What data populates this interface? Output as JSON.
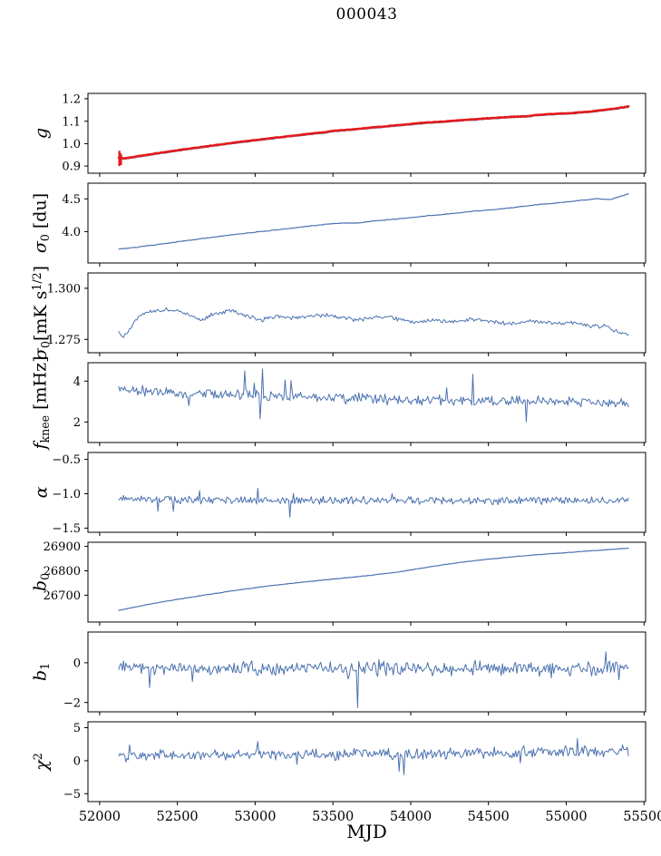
{
  "chart_data": {
    "type": "line",
    "title": "000043",
    "xlabel": "MJD",
    "x_axis": {
      "lim": [
        51925,
        55510
      ],
      "ticks": [
        52000,
        52500,
        53000,
        53500,
        54000,
        54500,
        55000,
        55500
      ],
      "tick_labels": [
        "52000",
        "52500",
        "53000",
        "53500",
        "54000",
        "54500",
        "55000",
        "55500"
      ]
    },
    "colors": {
      "data_line": "#4c72b0",
      "fit_line": "#e41a1c",
      "axis": "#000000"
    },
    "panels": [
      {
        "name": "g",
        "ylabel": [
          {
            "t": "g",
            "it": true
          }
        ],
        "ylim": [
          0.868,
          1.224
        ],
        "yticks": [
          0.9,
          1.0,
          1.1,
          1.2
        ],
        "ytick_labels": [
          "0.9",
          "1.0",
          "1.1",
          "1.2"
        ],
        "xrange": [
          52123,
          55400
        ],
        "series": [
          {
            "name": "gain-raw",
            "color": "#4c72b0",
            "width": 1.1,
            "n": 330,
            "seed": 3,
            "noise": 0.0016,
            "trend": [
              [
                52123,
                0.933
              ],
              [
                52160,
                0.93
              ],
              [
                52250,
                0.94
              ],
              [
                52400,
                0.956
              ],
              [
                52550,
                0.971
              ],
              [
                52700,
                0.985
              ],
              [
                52850,
                0.999
              ],
              [
                53000,
                1.012
              ],
              [
                53150,
                1.024
              ],
              [
                53300,
                1.036
              ],
              [
                53450,
                1.047
              ],
              [
                53500,
                1.053
              ],
              [
                53600,
                1.058
              ],
              [
                53750,
                1.068
              ],
              [
                53900,
                1.077
              ],
              [
                54100,
                1.09
              ],
              [
                54200,
                1.094
              ],
              [
                54350,
                1.102
              ],
              [
                54500,
                1.109
              ],
              [
                54650,
                1.116
              ],
              [
                54750,
                1.118
              ],
              [
                54800,
                1.123
              ],
              [
                54950,
                1.13
              ],
              [
                55000,
                1.131
              ],
              [
                55150,
                1.139
              ],
              [
                55250,
                1.147
              ],
              [
                55320,
                1.153
              ],
              [
                55400,
                1.162
              ]
            ]
          },
          {
            "name": "gain-fit",
            "color": "#e41a1c",
            "width": 2.6,
            "n": 330,
            "seed": 9,
            "noise": 0.0012,
            "yoffset": 0.004
          },
          {
            "name": "gain-errorbars",
            "color": "#e41a1c",
            "width": 2.4,
            "type": "vsegments",
            "segments": [
              [
                52127,
                0.9,
                0.968
              ],
              [
                52132,
                0.912,
                0.958
              ],
              [
                52137,
                0.905,
                0.952
              ]
            ]
          }
        ]
      },
      {
        "name": "sigma0-du",
        "ylabel": [
          {
            "t": "σ",
            "it": true
          },
          {
            "t": "0",
            "sub": true
          },
          {
            "t": " [du]"
          }
        ],
        "ylim": [
          3.52,
          4.74
        ],
        "yticks": [
          4.0,
          4.5
        ],
        "ytick_labels": [
          "4.0",
          "4.5"
        ],
        "xrange": [
          52123,
          55400
        ],
        "series": [
          {
            "name": "sigma0-du-line",
            "color": "#4c72b0",
            "width": 1.2,
            "n": 330,
            "seed": 17,
            "noise": 0.006,
            "trend": [
              [
                52123,
                3.73
              ],
              [
                52250,
                3.765
              ],
              [
                52400,
                3.81
              ],
              [
                52550,
                3.86
              ],
              [
                52700,
                3.905
              ],
              [
                52850,
                3.95
              ],
              [
                53000,
                3.99
              ],
              [
                53150,
                4.03
              ],
              [
                53300,
                4.07
              ],
              [
                53450,
                4.11
              ],
              [
                53550,
                4.13
              ],
              [
                53650,
                4.13
              ],
              [
                53800,
                4.17
              ],
              [
                53950,
                4.2
              ],
              [
                54100,
                4.24
              ],
              [
                54250,
                4.27
              ],
              [
                54400,
                4.31
              ],
              [
                54550,
                4.34
              ],
              [
                54700,
                4.38
              ],
              [
                54850,
                4.42
              ],
              [
                55000,
                4.45
              ],
              [
                55100,
                4.48
              ],
              [
                55200,
                4.5
              ],
              [
                55280,
                4.49
              ],
              [
                55340,
                4.53
              ],
              [
                55400,
                4.58
              ]
            ]
          }
        ]
      },
      {
        "name": "sigma0-mks",
        "ylabel": [
          {
            "t": "σ",
            "it": true
          },
          {
            "t": "0",
            "sub": true
          },
          {
            "t": "[mK s"
          },
          {
            "t": "1/2",
            "sup": true
          },
          {
            "t": "]"
          }
        ],
        "ylim": [
          1.2685,
          1.3075
        ],
        "yticks": [
          1.275,
          1.3
        ],
        "ytick_labels": [
          "1.275",
          "1.300"
        ],
        "xrange": [
          52123,
          55400
        ],
        "series": [
          {
            "name": "sigma0-mks-line",
            "color": "#4c72b0",
            "width": 1.0,
            "n": 420,
            "seed": 23,
            "noise": 0.0012,
            "trend": [
              [
                52123,
                1.279
              ],
              [
                52150,
                1.2755
              ],
              [
                52200,
                1.281
              ],
              [
                52270,
                1.2875
              ],
              [
                52350,
                1.289
              ],
              [
                52450,
                1.2895
              ],
              [
                52550,
                1.288
              ],
              [
                52650,
                1.2845
              ],
              [
                52750,
                1.288
              ],
              [
                52850,
                1.289
              ],
              [
                52950,
                1.286
              ],
              [
                53050,
                1.2845
              ],
              [
                53150,
                1.2865
              ],
              [
                53250,
                1.2855
              ],
              [
                53350,
                1.2865
              ],
              [
                53450,
                1.287
              ],
              [
                53550,
                1.2855
              ],
              [
                53650,
                1.2845
              ],
              [
                53750,
                1.2855
              ],
              [
                53850,
                1.286
              ],
              [
                53950,
                1.284
              ],
              [
                54050,
                1.2835
              ],
              [
                54150,
                1.2845
              ],
              [
                54250,
                1.2835
              ],
              [
                54350,
                1.2845
              ],
              [
                54450,
                1.285
              ],
              [
                54550,
                1.2835
              ],
              [
                54650,
                1.2825
              ],
              [
                54750,
                1.284
              ],
              [
                54850,
                1.2835
              ],
              [
                54950,
                1.2825
              ],
              [
                55050,
                1.2835
              ],
              [
                55150,
                1.2815
              ],
              [
                55250,
                1.2815
              ],
              [
                55320,
                1.279
              ],
              [
                55400,
                1.2775
              ]
            ]
          }
        ]
      },
      {
        "name": "fknee",
        "ylabel": [
          {
            "t": "f",
            "it": true
          },
          {
            "t": "knee",
            "sub": true
          },
          {
            "t": " [mHz]"
          }
        ],
        "ylim": [
          1.0,
          4.9
        ],
        "yticks": [
          2,
          4
        ],
        "ytick_labels": [
          "2",
          "4"
        ],
        "xrange": [
          52123,
          55400
        ],
        "series": [
          {
            "name": "fknee-line",
            "color": "#4c72b0",
            "width": 1.0,
            "n": 430,
            "seed": 31,
            "noise": 0.3,
            "spike": {
              "prob": 0.035,
              "amp": 0.85
            },
            "trend": [
              [
                52123,
                3.65
              ],
              [
                52250,
                3.55
              ],
              [
                52450,
                3.45
              ],
              [
                52700,
                3.38
              ],
              [
                53000,
                3.3
              ],
              [
                53400,
                3.22
              ],
              [
                53800,
                3.12
              ],
              [
                54200,
                3.08
              ],
              [
                54600,
                3.02
              ],
              [
                55000,
                3.0
              ],
              [
                55400,
                2.88
              ]
            ]
          }
        ]
      },
      {
        "name": "alpha",
        "ylabel": [
          {
            "t": "α",
            "it": true
          }
        ],
        "ylim": [
          -1.56,
          -0.4
        ],
        "yticks": [
          -0.5,
          -1.0,
          -1.5
        ],
        "ytick_labels": [
          "−0.5",
          "−1.0",
          "−1.5"
        ],
        "xrange": [
          52123,
          55400
        ],
        "series": [
          {
            "name": "alpha-line",
            "color": "#4c72b0",
            "width": 1.0,
            "n": 430,
            "seed": 41,
            "noise": 0.065,
            "spike": {
              "prob": 0.02,
              "amp": 0.12
            },
            "trend": [
              [
                52123,
                -1.065
              ],
              [
                52500,
                -1.085
              ],
              [
                53000,
                -1.095
              ],
              [
                53500,
                -1.1
              ],
              [
                54000,
                -1.095
              ],
              [
                54500,
                -1.095
              ],
              [
                55000,
                -1.1
              ],
              [
                55400,
                -1.1
              ]
            ]
          }
        ]
      },
      {
        "name": "b0",
        "ylabel": [
          {
            "t": "b",
            "it": true
          },
          {
            "t": "0",
            "sub": true
          }
        ],
        "ylim": [
          26590,
          26917
        ],
        "yticks": [
          26700,
          26800,
          26900
        ],
        "ytick_labels": [
          "26700",
          "26800",
          "26900"
        ],
        "xrange": [
          52123,
          55400
        ],
        "series": [
          {
            "name": "b0-line",
            "color": "#4c72b0",
            "width": 1.2,
            "n": 330,
            "seed": 47,
            "noise": 1.2,
            "trend": [
              [
                52123,
                26638
              ],
              [
                52300,
                26661
              ],
              [
                52500,
                26683
              ],
              [
                52700,
                26703
              ],
              [
                52900,
                26722
              ],
              [
                53100,
                26739
              ],
              [
                53300,
                26753
              ],
              [
                53500,
                26766
              ],
              [
                53700,
                26779
              ],
              [
                53900,
                26793
              ],
              [
                54100,
                26814
              ],
              [
                54300,
                26833
              ],
              [
                54500,
                26848
              ],
              [
                54700,
                26860
              ],
              [
                54900,
                26870
              ],
              [
                55100,
                26879
              ],
              [
                55250,
                26886
              ],
              [
                55400,
                26893
              ]
            ]
          }
        ]
      },
      {
        "name": "b1",
        "ylabel": [
          {
            "t": "b",
            "it": true
          },
          {
            "t": "1",
            "sub": true
          }
        ],
        "ylim": [
          -2.47,
          1.55
        ],
        "yticks": [
          0,
          -2
        ],
        "ytick_labels": [
          "0",
          "−2"
        ],
        "xrange": [
          52123,
          55400
        ],
        "series": [
          {
            "name": "b1-line",
            "color": "#4c72b0",
            "width": 1.0,
            "n": 430,
            "seed": 53,
            "noise": 0.42,
            "spike": {
              "prob": 0.025,
              "amp": 0.55
            },
            "outliers": [
              [
                53660,
                -2.25
              ]
            ],
            "trend": [
              [
                52123,
                -0.22
              ],
              [
                52700,
                -0.3
              ],
              [
                53300,
                -0.28
              ],
              [
                53900,
                -0.3
              ],
              [
                54500,
                -0.26
              ],
              [
                55000,
                -0.3
              ],
              [
                55400,
                -0.27
              ]
            ]
          }
        ]
      },
      {
        "name": "chi2",
        "ylabel": [
          {
            "t": "χ",
            "it": true
          },
          {
            "t": "2",
            "sup": true
          }
        ],
        "ylim": [
          -6.2,
          5.9
        ],
        "yticks": [
          5,
          0,
          -5
        ],
        "ytick_labels": [
          "5",
          "0",
          "−5"
        ],
        "xrange": [
          52123,
          55400
        ],
        "series": [
          {
            "name": "chi2-line",
            "color": "#4c72b0",
            "width": 1.0,
            "n": 430,
            "seed": 61,
            "noise": 1.05,
            "spike": {
              "prob": 0.02,
              "amp": 1.2
            },
            "trend": [
              [
                52123,
                0.55
              ],
              [
                52600,
                0.85
              ],
              [
                53100,
                0.9
              ],
              [
                53600,
                1.0
              ],
              [
                54100,
                1.05
              ],
              [
                54600,
                1.2
              ],
              [
                54900,
                1.45
              ],
              [
                55150,
                1.3
              ],
              [
                55400,
                1.5
              ]
            ]
          }
        ]
      }
    ]
  }
}
